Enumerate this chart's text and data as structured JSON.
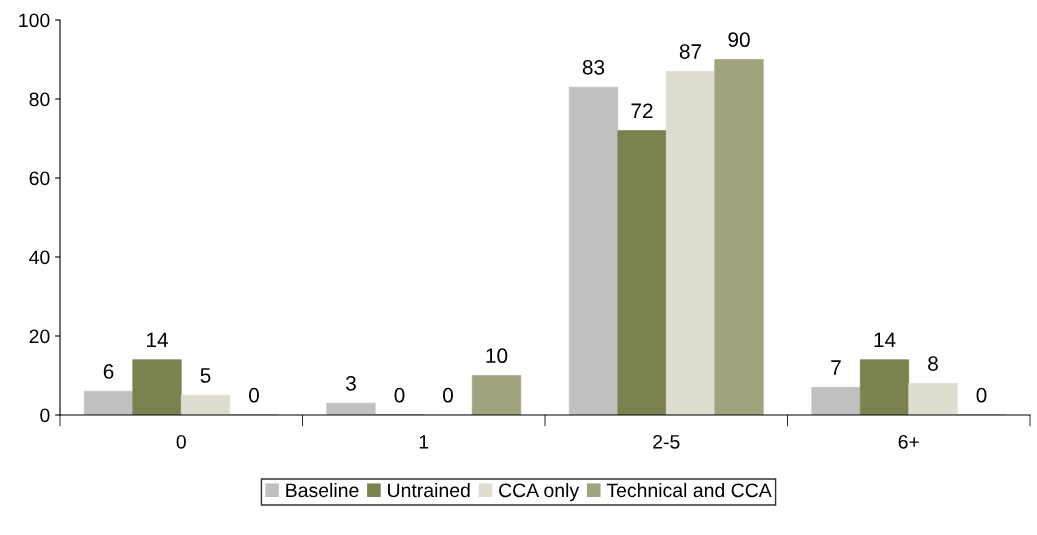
{
  "chart_data": {
    "type": "bar",
    "categories": [
      "0",
      "1",
      "2-5",
      "6+"
    ],
    "series": [
      {
        "name": "Baseline",
        "color": "#c0c0c0",
        "values": [
          6,
          3,
          83,
          7
        ]
      },
      {
        "name": "Untrained",
        "color": "#7b8250",
        "values": [
          14,
          0,
          72,
          14
        ]
      },
      {
        "name": "CCA only",
        "color": "#deddd0",
        "values": [
          5,
          0,
          87,
          8
        ]
      },
      {
        "name": "Technical and CCA",
        "color": "#a1a37f",
        "values": [
          0,
          10,
          90,
          0
        ]
      }
    ],
    "ylim": [
      0,
      100
    ],
    "yticks": [
      0,
      20,
      40,
      60,
      80,
      100
    ],
    "grid": false,
    "legend": "bottom",
    "data_labels": true
  }
}
